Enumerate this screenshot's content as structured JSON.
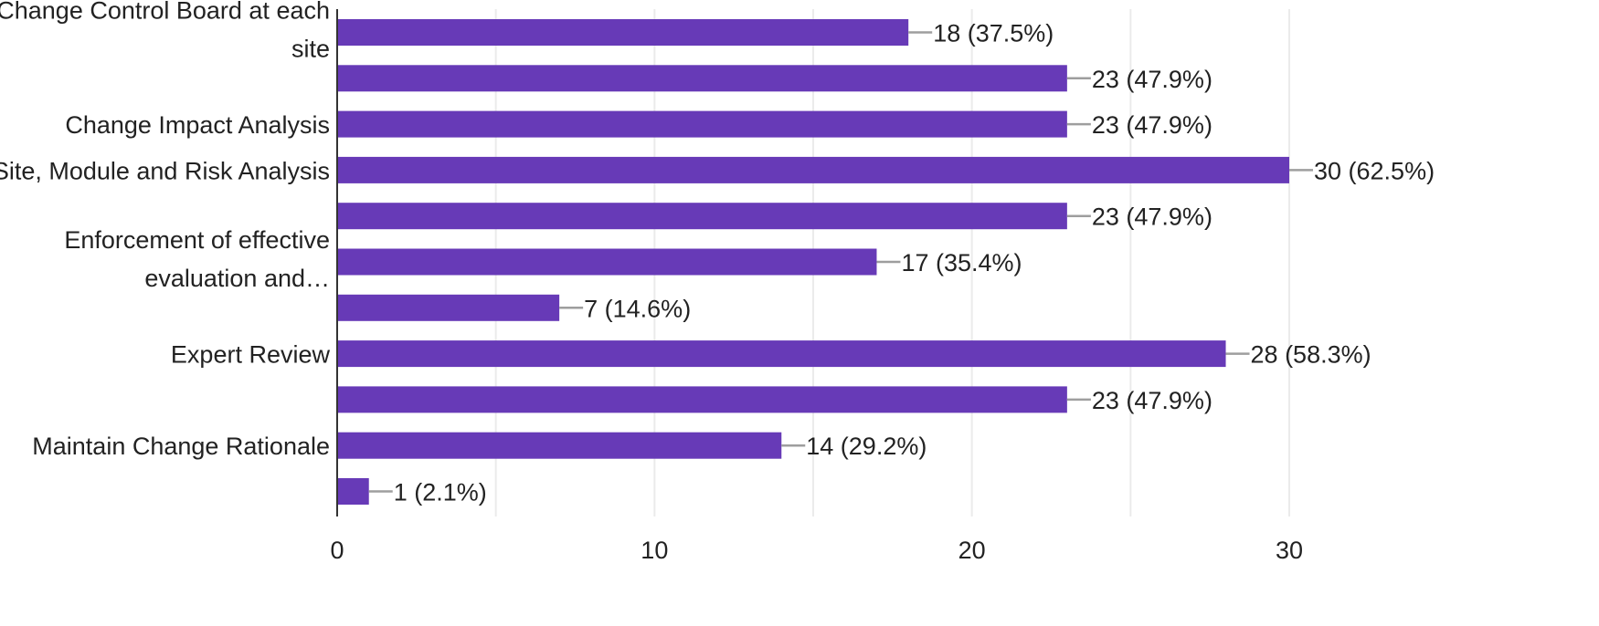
{
  "chart_data": {
    "type": "bar",
    "orientation": "horizontal",
    "title": "",
    "xlabel": "",
    "ylabel": "",
    "xlim": [
      0,
      30
    ],
    "grid": true,
    "xticks": [
      0,
      10,
      20,
      30
    ],
    "bar_color": "#673ab7",
    "leader_color": "#9e9e9e",
    "grid_color": "#ebebeb",
    "axis_color": "#333333",
    "bars": [
      {
        "value": 18,
        "label": "18 (37.5%)"
      },
      {
        "value": 23,
        "label": "23 (47.9%)"
      },
      {
        "value": 23,
        "label": "23 (47.9%)"
      },
      {
        "value": 30,
        "label": "30 (62.5%)"
      },
      {
        "value": 23,
        "label": "23 (47.9%)"
      },
      {
        "value": 17,
        "label": "17 (35.4%)"
      },
      {
        "value": 7,
        "label": "7 (14.6%)"
      },
      {
        "value": 28,
        "label": "28 (58.3%)"
      },
      {
        "value": 23,
        "label": "23 (47.9%)"
      },
      {
        "value": 14,
        "label": "14 (29.2%)"
      },
      {
        "value": 1,
        "label": "1 (2.1%)"
      }
    ],
    "category_labels": [
      {
        "bar_index": 0,
        "lines": [
          "Change Control Board at each",
          "site"
        ]
      },
      {
        "bar_index": 2,
        "lines": [
          "Change Impact Analysis"
        ]
      },
      {
        "bar_index": 3,
        "lines": [
          "Site, Module and Risk Analysis"
        ]
      },
      {
        "bar_index": 5,
        "lines": [
          "Enforcement of effective",
          "evaluation and…"
        ]
      },
      {
        "bar_index": 7,
        "lines": [
          "Expert Review"
        ]
      },
      {
        "bar_index": 9,
        "lines": [
          "Maintain Change Rationale"
        ]
      }
    ]
  }
}
